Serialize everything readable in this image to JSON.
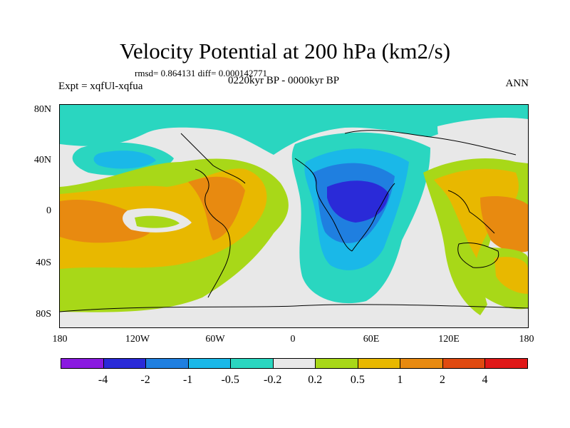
{
  "title": "Velocity Potential at 200 hPa (km2/s)",
  "stats": "rmsd= 0.864131 diff= 0.000142771",
  "experiment": "Expt = xqfUl-xqfua",
  "period": "0220kyr BP - 0000kyr BP",
  "season": "ANN",
  "latitude_labels": [
    "80N",
    "40N",
    "0",
    "40S",
    "80S"
  ],
  "longitude_labels": [
    "180",
    "120W",
    "60W",
    "0",
    "60E",
    "120E",
    "180"
  ],
  "colorbar": {
    "labels": [
      "-4",
      "-2",
      "-1",
      "-0.5",
      "-0.2",
      "0.2",
      "0.5",
      "1",
      "2",
      "4"
    ],
    "colors": [
      "#8a1ae0",
      "#2a2ad8",
      "#1f7fe0",
      "#1ab8e8",
      "#2ad6c0",
      "#e8e8e8",
      "#a8d818",
      "#e8b800",
      "#e88a10",
      "#e04a10",
      "#e01818"
    ]
  },
  "map_colors": {
    "land_outline": "#000000",
    "background": "#e8e8e8"
  }
}
